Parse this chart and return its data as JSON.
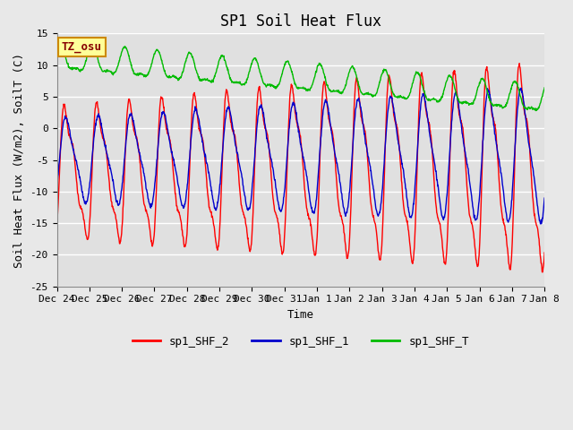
{
  "title": "SP1 Soil Heat Flux",
  "xlabel": "Time",
  "ylabel": "Soil Heat Flux (W/m2), SoilT (C)",
  "ylim": [
    -25,
    15
  ],
  "xlim": [
    0,
    15
  ],
  "fig_bg_color": "#e8e8e8",
  "plot_bg_color": "#e0e0e0",
  "grid_color": "#c8c8c8",
  "line_red": "#ff0000",
  "line_blue": "#0000cc",
  "line_green": "#00bb00",
  "legend_labels": [
    "sp1_SHF_2",
    "sp1_SHF_1",
    "sp1_SHF_T"
  ],
  "tz_label": "TZ_osu",
  "tz_bg": "#ffff99",
  "tz_border": "#cc8800",
  "x_tick_labels": [
    "Dec 24",
    "Dec 25",
    "Dec 26",
    "Dec 27",
    "Dec 28",
    "Dec 29",
    "Dec 30",
    "Dec 31",
    "Jan 1",
    "Jan 2",
    "Jan 3",
    "Jan 4",
    "Jan 5",
    "Jan 6",
    "Jan 7",
    "Jan 8"
  ],
  "title_fontsize": 12,
  "label_fontsize": 9,
  "tick_fontsize": 8,
  "legend_fontsize": 9
}
